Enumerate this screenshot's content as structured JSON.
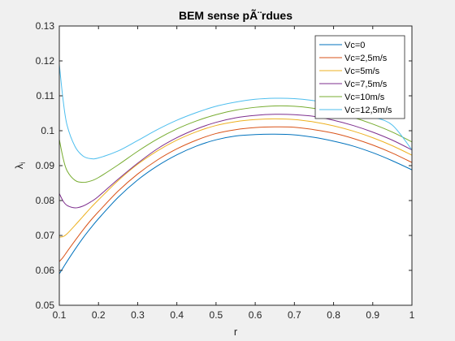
{
  "chart_data": {
    "type": "line",
    "title": "BEM sense pÃ¨rdues",
    "xlabel": "r",
    "ylabel": "λ",
    "ylabel_sub": "i",
    "xlim": [
      0.1,
      1.0
    ],
    "ylim": [
      0.05,
      0.13
    ],
    "xticks": [
      0.1,
      0.2,
      0.3,
      0.4,
      0.5,
      0.6,
      0.7,
      0.8,
      0.9,
      1.0
    ],
    "xtick_labels": [
      "0.1",
      "0.2",
      "0.3",
      "0.4",
      "0.5",
      "0.6",
      "0.7",
      "0.8",
      "0.9",
      "1"
    ],
    "yticks": [
      0.05,
      0.06,
      0.07,
      0.08,
      0.09,
      0.1,
      0.11,
      0.12,
      0.13
    ],
    "ytick_labels": [
      "0.05",
      "0.06",
      "0.07",
      "0.08",
      "0.09",
      "0.1",
      "0.11",
      "0.12",
      "0.13"
    ],
    "grid": false,
    "legend_position": "top-right",
    "x": [
      0.1,
      0.11,
      0.12,
      0.14,
      0.16,
      0.18,
      0.2,
      0.25,
      0.3,
      0.35,
      0.4,
      0.45,
      0.5,
      0.55,
      0.6,
      0.65,
      0.7,
      0.75,
      0.8,
      0.85,
      0.9,
      0.95,
      1.0
    ],
    "series": [
      {
        "name": "Vc=0",
        "color": "#0072BD",
        "values": [
          0.059,
          0.0608,
          0.0626,
          0.066,
          0.0692,
          0.0721,
          0.0748,
          0.0809,
          0.0859,
          0.0899,
          0.0931,
          0.0956,
          0.0974,
          0.0985,
          0.0989,
          0.099,
          0.0988,
          0.0981,
          0.097,
          0.0956,
          0.0937,
          0.0914,
          0.0888
        ]
      },
      {
        "name": "Vc=2,5m/s",
        "color": "#D95319",
        "values": [
          0.0625,
          0.0638,
          0.0654,
          0.0685,
          0.0715,
          0.0743,
          0.0768,
          0.0827,
          0.0876,
          0.0916,
          0.0948,
          0.0973,
          0.0992,
          0.1003,
          0.1009,
          0.1011,
          0.101,
          0.1003,
          0.0993,
          0.0978,
          0.0959,
          0.0936,
          0.0909
        ]
      },
      {
        "name": "Vc=5m/s",
        "color": "#EDB120",
        "values": [
          0.0695,
          0.0697,
          0.0705,
          0.0729,
          0.0754,
          0.0779,
          0.0802,
          0.0857,
          0.0904,
          0.0942,
          0.0973,
          0.0997,
          0.1015,
          0.1026,
          0.1032,
          0.1034,
          0.1032,
          0.1025,
          0.1014,
          0.0999,
          0.098,
          0.0957,
          0.093
        ]
      },
      {
        "name": "Vc=7,5m/s",
        "color": "#7E2F8E",
        "values": [
          0.082,
          0.0798,
          0.0786,
          0.0779,
          0.0784,
          0.0796,
          0.0812,
          0.0861,
          0.0907,
          0.0948,
          0.098,
          0.1005,
          0.1024,
          0.1037,
          0.1044,
          0.1047,
          0.1046,
          0.1041,
          0.103,
          0.1015,
          0.0996,
          0.0973,
          0.0945
        ]
      },
      {
        "name": "Vc=10m/s",
        "color": "#77AC30",
        "values": [
          0.0975,
          0.092,
          0.0885,
          0.0858,
          0.0852,
          0.0856,
          0.0866,
          0.0902,
          0.0941,
          0.0976,
          0.1005,
          0.1028,
          0.1046,
          0.1059,
          0.1067,
          0.1071,
          0.107,
          0.1064,
          0.1053,
          0.1038,
          0.1019,
          0.0996,
          0.0968
        ]
      },
      {
        "name": "Vc=12,5m/s",
        "color": "#4DBEEE",
        "values": [
          0.119,
          0.1085,
          0.1015,
          0.0955,
          0.0928,
          0.092,
          0.0922,
          0.0942,
          0.0972,
          0.1003,
          0.103,
          0.1052,
          0.107,
          0.1082,
          0.109,
          0.1093,
          0.1092,
          0.1086,
          0.1075,
          0.106,
          0.104,
          0.1016,
          0.0945
        ]
      }
    ]
  }
}
